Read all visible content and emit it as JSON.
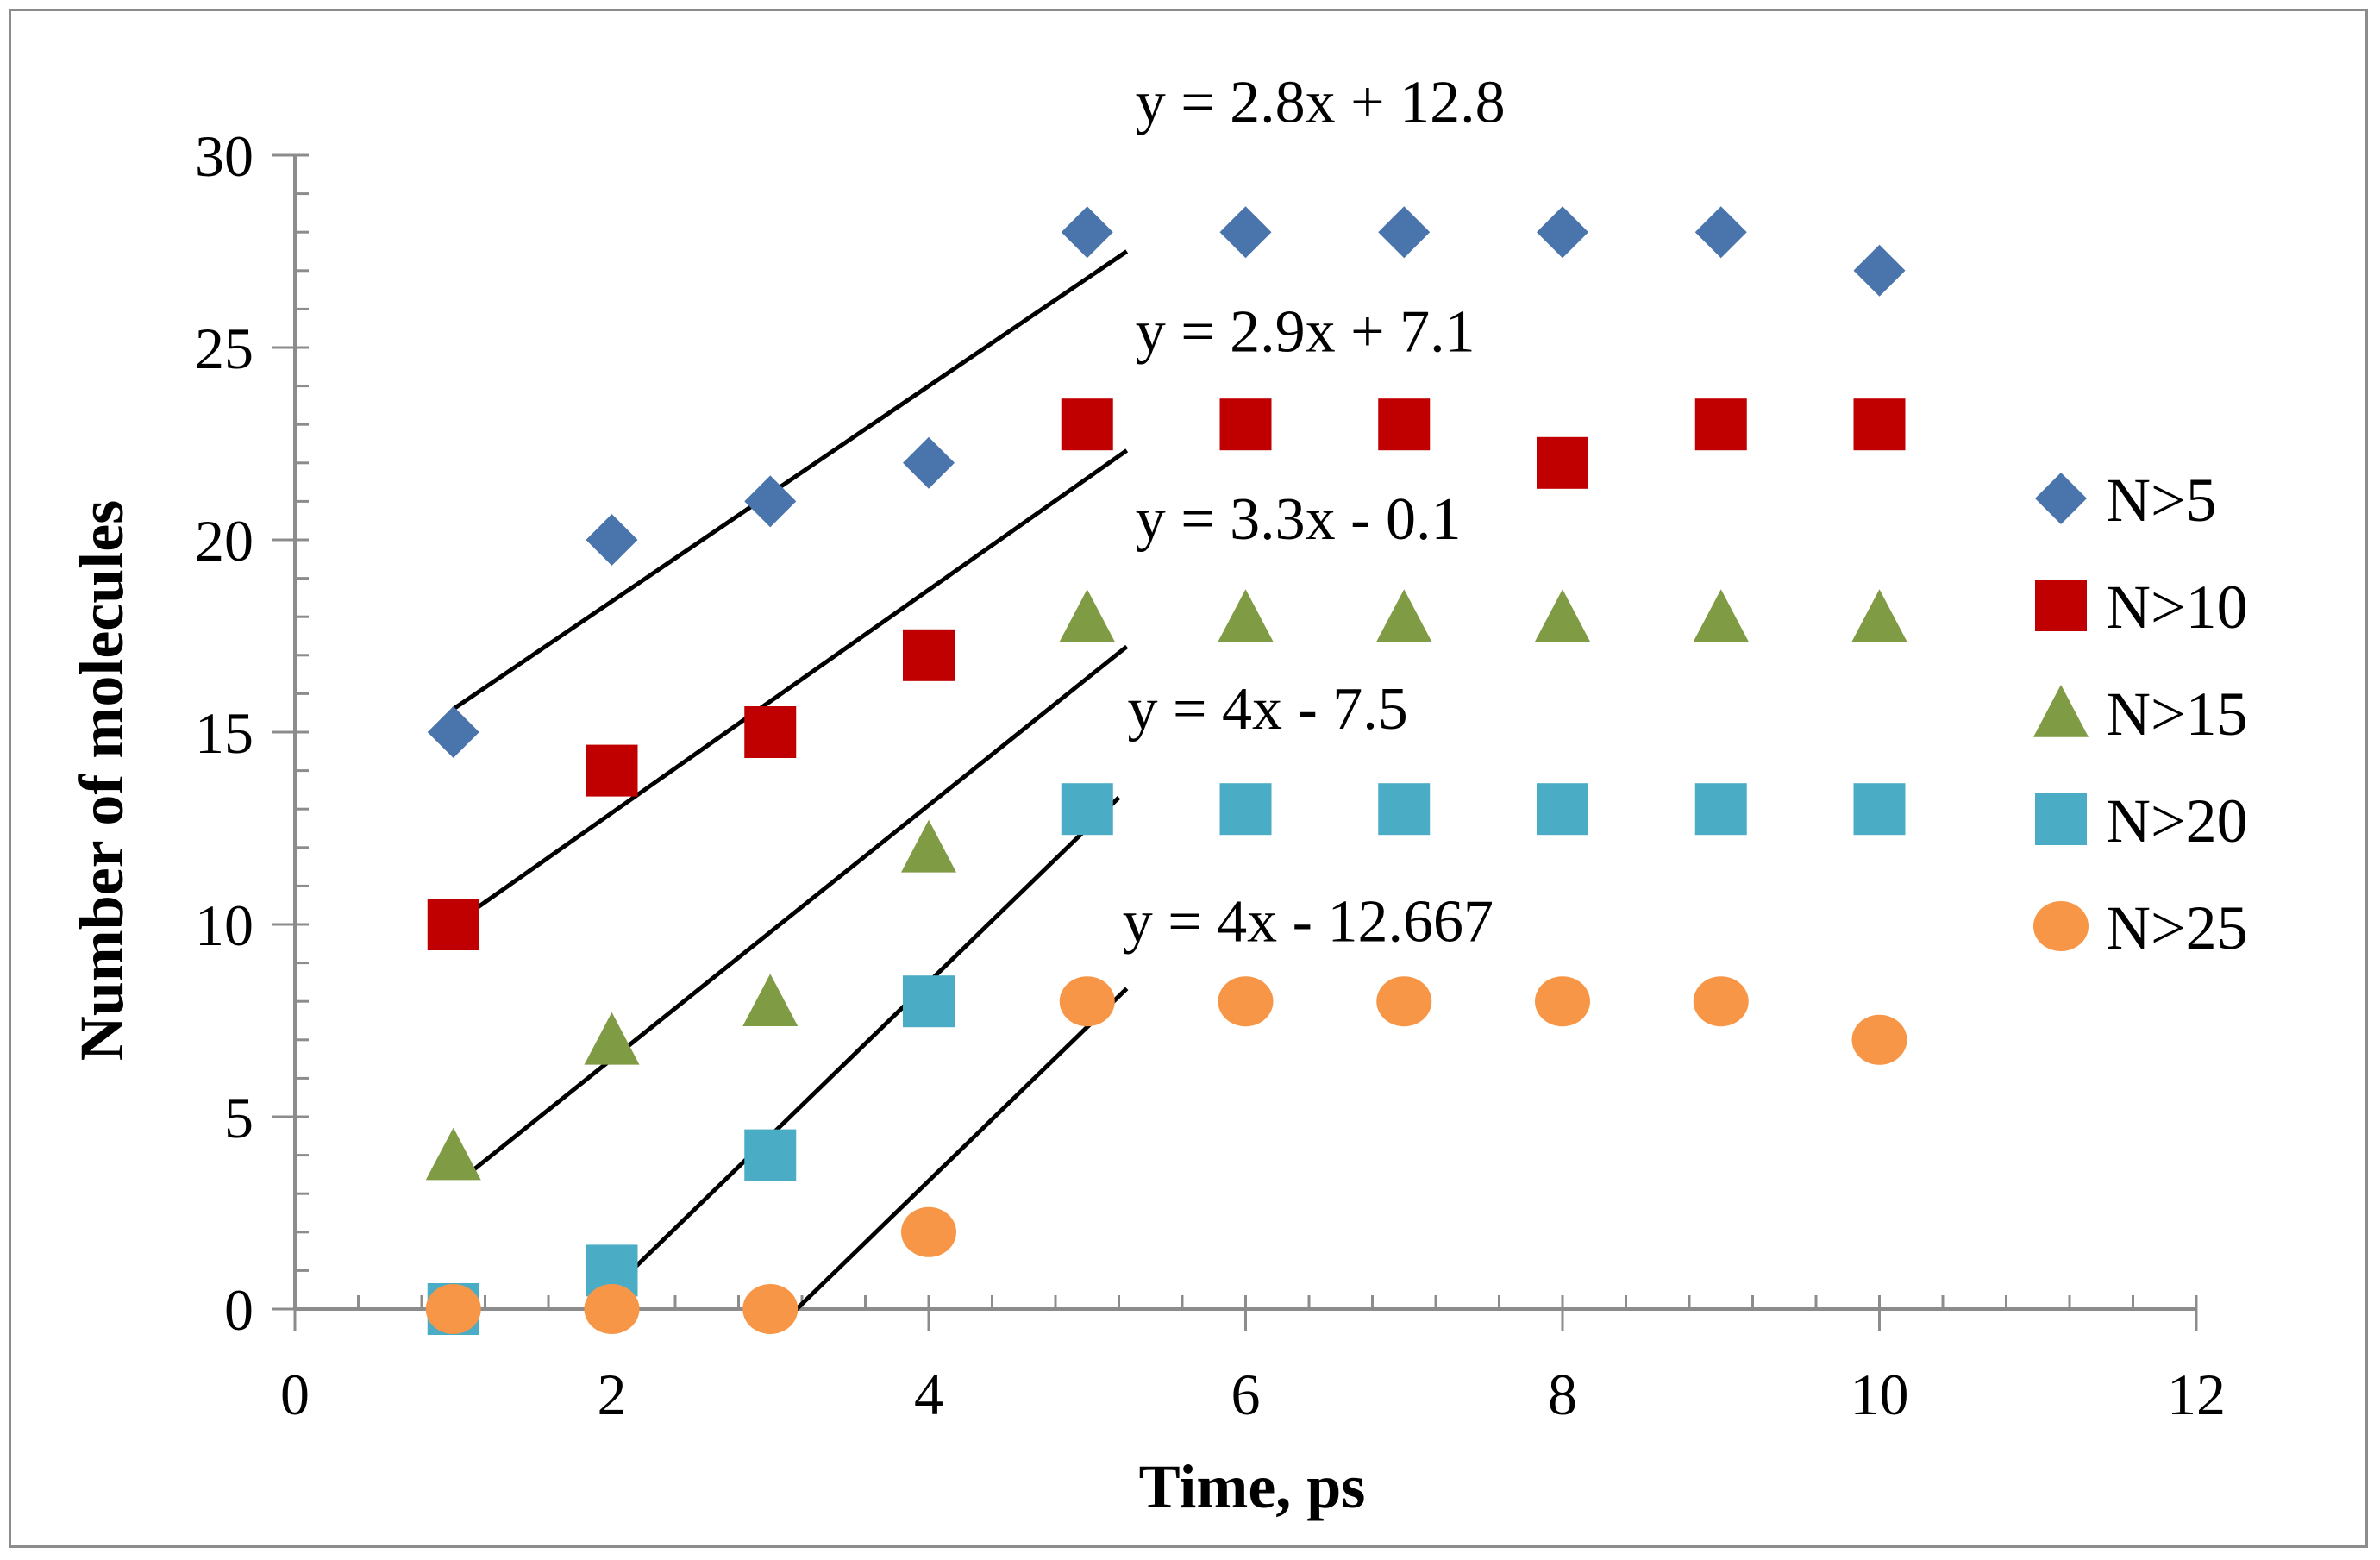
{
  "chart_data": {
    "type": "scatter",
    "title": "",
    "xlabel": "Time, ps",
    "ylabel": "Number of molecules",
    "xlim": [
      0,
      12
    ],
    "ylim": [
      0,
      30
    ],
    "x_ticks": [
      0,
      2,
      4,
      6,
      8,
      10,
      12
    ],
    "y_ticks": [
      0,
      5,
      10,
      15,
      20,
      25,
      30
    ],
    "x_tick_labels": [
      "0",
      "2",
      "4",
      "6",
      "8",
      "10",
      "12"
    ],
    "y_tick_labels": [
      "0",
      "5",
      "10",
      "15",
      "20",
      "25",
      "30"
    ],
    "x_minor_step": 0.4,
    "y_minor_step": 1,
    "legend_position": "right",
    "series": [
      {
        "name": "N>5",
        "marker": "diamond",
        "color": "#4a74ac",
        "x": [
          1,
          2,
          3,
          4,
          5,
          6,
          7,
          8,
          9,
          10
        ],
        "values": [
          15,
          20,
          21,
          22,
          28,
          28,
          28,
          28,
          28,
          27
        ],
        "trendline": {
          "slope": 2.8,
          "intercept": 12.8,
          "x_range": [
            1,
            5.25
          ],
          "equation": "y = 2.8x + 12.8"
        }
      },
      {
        "name": "N>10",
        "marker": "square",
        "color": "#c00000",
        "x": [
          1,
          2,
          3,
          4,
          5,
          6,
          7,
          8,
          9,
          10
        ],
        "values": [
          10,
          14,
          15,
          17,
          23,
          23,
          23,
          22,
          23,
          23
        ],
        "trendline": {
          "slope": 2.9,
          "intercept": 7.1,
          "x_range": [
            1.05,
            5.25
          ],
          "equation": "y = 2.9x + 7.1"
        }
      },
      {
        "name": "N>15",
        "marker": "triangle",
        "color": "#7f9b44",
        "x": [
          1,
          2,
          3,
          4,
          5,
          6,
          7,
          8,
          9,
          10
        ],
        "values": [
          4,
          7,
          8,
          12,
          18,
          18,
          18,
          18,
          18,
          18
        ],
        "trendline": {
          "slope": 3.3,
          "intercept": -0.1,
          "x_range": [
            1.1,
            5.25
          ],
          "equation": "y = 3.3x - 0.1"
        }
      },
      {
        "name": "N>20",
        "marker": "square",
        "color": "#4bacc6",
        "x": [
          1,
          2,
          3,
          4,
          5,
          6,
          7,
          8,
          9,
          10
        ],
        "values": [
          0,
          1,
          4,
          8,
          13,
          13,
          13,
          13,
          13,
          13
        ],
        "trendline": {
          "slope": 4,
          "intercept": -7.5,
          "x_range": [
            2.1,
            5.2
          ],
          "equation": "y = 4x - 7.5"
        }
      },
      {
        "name": "N>25",
        "marker": "circle",
        "color": "#f79646",
        "x": [
          1,
          2,
          3,
          4,
          5,
          6,
          7,
          8,
          9,
          10
        ],
        "values": [
          0,
          0,
          0,
          2,
          8,
          8,
          8,
          8,
          8,
          7
        ],
        "trendline": {
          "slope": 4,
          "intercept": -12.667,
          "x_range": [
            3.15,
            5.25
          ],
          "equation": "y = 4x - 12.667"
        }
      }
    ]
  }
}
